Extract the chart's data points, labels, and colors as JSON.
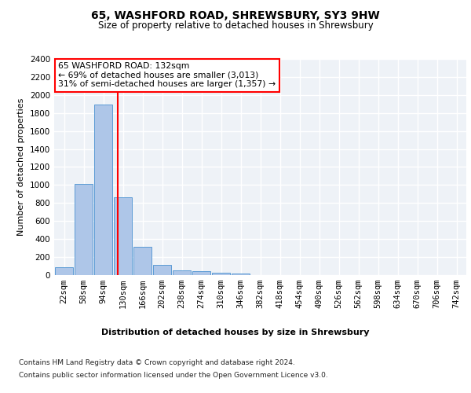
{
  "title1": "65, WASHFORD ROAD, SHREWSBURY, SY3 9HW",
  "title2": "Size of property relative to detached houses in Shrewsbury",
  "xlabel": "Distribution of detached houses by size in Shrewsbury",
  "ylabel": "Number of detached properties",
  "bin_labels": [
    "22sqm",
    "58sqm",
    "94sqm",
    "130sqm",
    "166sqm",
    "202sqm",
    "238sqm",
    "274sqm",
    "310sqm",
    "346sqm",
    "382sqm",
    "418sqm",
    "454sqm",
    "490sqm",
    "526sqm",
    "562sqm",
    "598sqm",
    "634sqm",
    "670sqm",
    "706sqm",
    "742sqm"
  ],
  "bar_values": [
    85,
    1015,
    1890,
    860,
    315,
    115,
    50,
    40,
    30,
    15,
    0,
    0,
    0,
    0,
    0,
    0,
    0,
    0,
    0,
    0,
    0
  ],
  "bar_color": "#aec6e8",
  "bar_edge_color": "#5b9bd5",
  "vline_x_index": 2.73,
  "annotation_text": "65 WASHFORD ROAD: 132sqm\n← 69% of detached houses are smaller (3,013)\n31% of semi-detached houses are larger (1,357) →",
  "annotation_box_color": "white",
  "annotation_box_edge": "red",
  "vline_color": "red",
  "ylim": [
    0,
    2400
  ],
  "yticks": [
    0,
    200,
    400,
    600,
    800,
    1000,
    1200,
    1400,
    1600,
    1800,
    2000,
    2200,
    2400
  ],
  "footer_line1": "Contains HM Land Registry data © Crown copyright and database right 2024.",
  "footer_line2": "Contains public sector information licensed under the Open Government Licence v3.0.",
  "background_color": "#eef2f7",
  "grid_color": "white",
  "title1_fontsize": 10,
  "title2_fontsize": 8.5,
  "ylabel_fontsize": 8,
  "xlabel_fontsize": 8,
  "tick_fontsize": 7.5,
  "footer_fontsize": 6.5,
  "annotation_fontsize": 7.8
}
